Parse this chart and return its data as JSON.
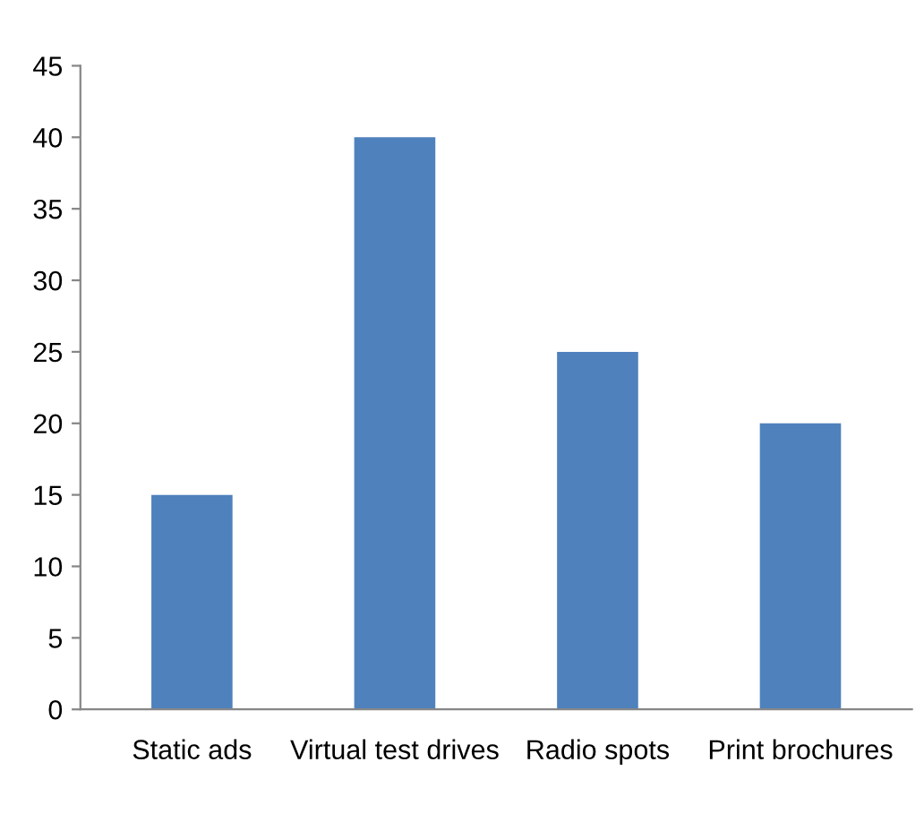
{
  "chart_data": {
    "type": "bar",
    "categories": [
      "Static ads",
      "Virtual test drives",
      "Radio spots",
      "Print brochures"
    ],
    "values": [
      15,
      40,
      25,
      20
    ],
    "color": "#4f81bd",
    "ylim": [
      0,
      45
    ],
    "yticks": [
      0,
      5,
      10,
      15,
      20,
      25,
      30,
      35,
      40,
      45
    ],
    "grid": false,
    "legend": false
  }
}
